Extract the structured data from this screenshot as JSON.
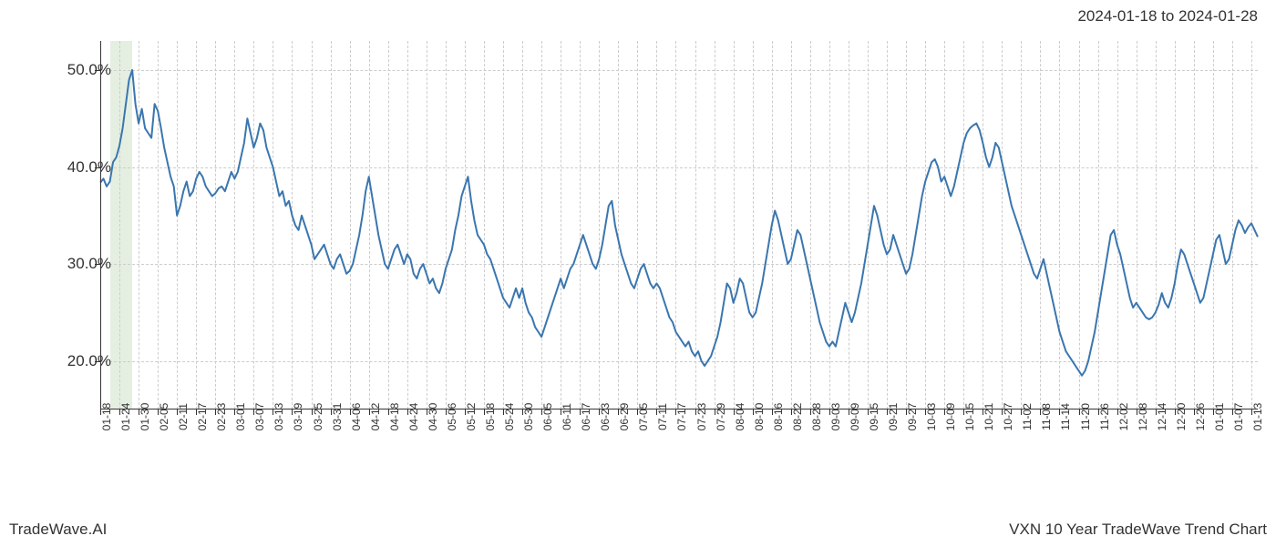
{
  "header": {
    "date_range": "2024-01-18 to 2024-01-28"
  },
  "footer": {
    "left": "TradeWave.AI",
    "right": "VXN 10 Year TradeWave Trend Chart"
  },
  "chart": {
    "type": "line",
    "background_color": "#ffffff",
    "line_color": "#3a76af",
    "line_width": 2,
    "grid_color": "#cccccc",
    "grid_dash": "3,3",
    "axis_color": "#333333",
    "highlight_band": {
      "start_index": 3,
      "end_index": 10,
      "fill_color": "#b4d2aa",
      "fill_opacity": 0.35
    },
    "y_axis": {
      "min": 15,
      "max": 53,
      "ticks": [
        20,
        30,
        40,
        50
      ],
      "tick_labels": [
        "20.0%",
        "30.0%",
        "40.0%",
        "50.0%"
      ],
      "label_fontsize": 17
    },
    "x_axis": {
      "tick_every": 6,
      "tick_labels": [
        "01-18",
        "01-24",
        "01-30",
        "02-05",
        "02-11",
        "02-17",
        "02-23",
        "03-01",
        "03-07",
        "03-13",
        "03-19",
        "03-25",
        "03-31",
        "04-06",
        "04-12",
        "04-18",
        "04-24",
        "04-30",
        "05-06",
        "05-12",
        "05-18",
        "05-24",
        "05-30",
        "06-05",
        "06-11",
        "06-17",
        "06-23",
        "06-29",
        "07-05",
        "07-11",
        "07-17",
        "07-23",
        "07-29",
        "08-04",
        "08-10",
        "08-16",
        "08-22",
        "08-28",
        "09-03",
        "09-09",
        "09-15",
        "09-21",
        "09-27",
        "10-03",
        "10-09",
        "10-15",
        "10-21",
        "10-27",
        "11-02",
        "11-08",
        "11-14",
        "11-20",
        "11-26",
        "12-02",
        "12-08",
        "12-14",
        "12-20",
        "12-26",
        "01-01",
        "01-07",
        "01-13"
      ],
      "label_fontsize": 12,
      "label_rotation": -90
    },
    "values": [
      38.4,
      38.8,
      38.0,
      38.5,
      40.5,
      41.0,
      42.2,
      44.0,
      46.5,
      49.0,
      50.0,
      46.5,
      44.5,
      46.0,
      44.0,
      43.5,
      43.0,
      46.5,
      45.8,
      44.0,
      42.0,
      40.5,
      39.0,
      38.0,
      35.0,
      36.0,
      37.5,
      38.5,
      37.0,
      37.5,
      38.8,
      39.5,
      39.0,
      38.0,
      37.5,
      37.0,
      37.3,
      37.8,
      38.0,
      37.5,
      38.5,
      39.5,
      38.8,
      39.5,
      41.0,
      42.5,
      45.0,
      43.5,
      42.0,
      43.0,
      44.5,
      43.8,
      42.0,
      41.0,
      40.0,
      38.5,
      37.0,
      37.5,
      36.0,
      36.5,
      35.0,
      34.0,
      33.5,
      35.0,
      34.0,
      33.0,
      32.0,
      30.5,
      31.0,
      31.5,
      32.0,
      31.0,
      30.0,
      29.5,
      30.5,
      31.0,
      30.0,
      29.0,
      29.3,
      30.0,
      31.5,
      33.0,
      35.0,
      37.5,
      39.0,
      37.0,
      35.0,
      33.0,
      31.5,
      30.0,
      29.5,
      30.5,
      31.5,
      32.0,
      31.0,
      30.0,
      31.0,
      30.5,
      29.0,
      28.5,
      29.5,
      30.0,
      29.0,
      28.0,
      28.5,
      27.5,
      27.0,
      28.0,
      29.5,
      30.5,
      31.5,
      33.5,
      35.0,
      37.0,
      38.0,
      39.0,
      36.5,
      34.5,
      33.0,
      32.5,
      32.0,
      31.0,
      30.5,
      29.5,
      28.5,
      27.5,
      26.5,
      26.0,
      25.5,
      26.5,
      27.5,
      26.5,
      27.5,
      26.0,
      25.0,
      24.5,
      23.5,
      23.0,
      22.5,
      23.5,
      24.5,
      25.5,
      26.5,
      27.5,
      28.5,
      27.5,
      28.5,
      29.5,
      30.0,
      31.0,
      32.0,
      33.0,
      32.0,
      31.0,
      30.0,
      29.5,
      30.5,
      32.0,
      34.0,
      36.0,
      36.5,
      34.0,
      32.5,
      31.0,
      30.0,
      29.0,
      28.0,
      27.5,
      28.5,
      29.5,
      30.0,
      29.0,
      28.0,
      27.5,
      28.0,
      27.5,
      26.5,
      25.5,
      24.5,
      24.0,
      23.0,
      22.5,
      22.0,
      21.5,
      22.0,
      21.0,
      20.5,
      21.0,
      20.0,
      19.5,
      20.0,
      20.5,
      21.5,
      22.5,
      24.0,
      26.0,
      28.0,
      27.5,
      26.0,
      27.0,
      28.5,
      28.0,
      26.5,
      25.0,
      24.5,
      25.0,
      26.5,
      28.0,
      30.0,
      32.0,
      34.0,
      35.5,
      34.5,
      33.0,
      31.5,
      30.0,
      30.5,
      32.0,
      33.5,
      33.0,
      31.5,
      30.0,
      28.5,
      27.0,
      25.5,
      24.0,
      23.0,
      22.0,
      21.5,
      22.0,
      21.5,
      23.0,
      24.5,
      26.0,
      25.0,
      24.0,
      25.0,
      26.5,
      28.0,
      30.0,
      32.0,
      34.0,
      36.0,
      35.0,
      33.5,
      32.0,
      31.0,
      31.5,
      33.0,
      32.0,
      31.0,
      30.0,
      29.0,
      29.5,
      31.0,
      33.0,
      35.0,
      37.0,
      38.5,
      39.5,
      40.5,
      40.8,
      40.0,
      38.5,
      39.0,
      38.0,
      37.0,
      38.0,
      39.5,
      41.0,
      42.5,
      43.5,
      44.0,
      44.3,
      44.5,
      43.8,
      42.5,
      41.0,
      40.0,
      41.0,
      42.5,
      42.0,
      40.5,
      39.0,
      37.5,
      36.0,
      35.0,
      34.0,
      33.0,
      32.0,
      31.0,
      30.0,
      29.0,
      28.5,
      29.5,
      30.5,
      29.0,
      27.5,
      26.0,
      24.5,
      23.0,
      22.0,
      21.0,
      20.5,
      20.0,
      19.5,
      19.0,
      18.5,
      19.0,
      20.0,
      21.5,
      23.0,
      25.0,
      27.0,
      29.0,
      31.0,
      33.0,
      33.5,
      32.0,
      31.0,
      29.5,
      28.0,
      26.5,
      25.5,
      26.0,
      25.5,
      25.0,
      24.5,
      24.3,
      24.5,
      25.0,
      25.8,
      27.0,
      26.0,
      25.5,
      26.5,
      28.0,
      30.0,
      31.5,
      31.0,
      30.0,
      29.0,
      28.0,
      27.0,
      26.0,
      26.5,
      28.0,
      29.5,
      31.0,
      32.5,
      33.0,
      31.5,
      30.0,
      30.5,
      32.0,
      33.5,
      34.5,
      34.0,
      33.2,
      33.8,
      34.2,
      33.5,
      32.8
    ]
  }
}
